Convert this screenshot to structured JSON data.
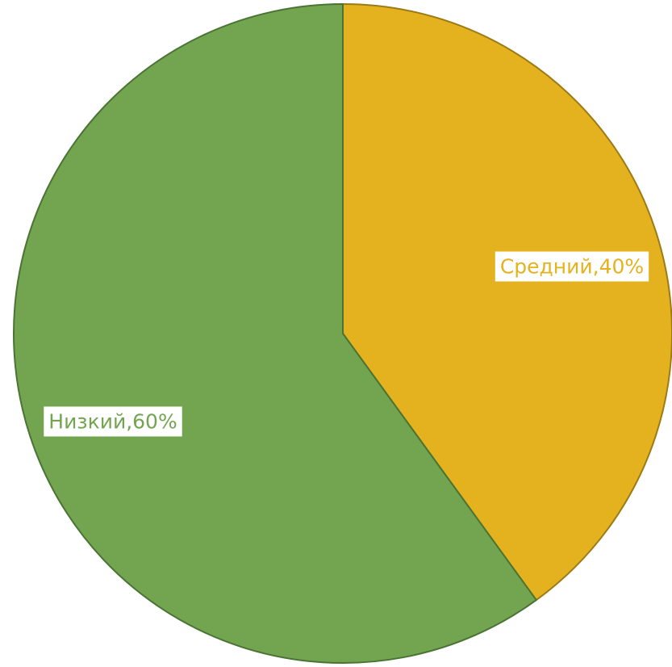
{
  "chart_data": {
    "type": "pie",
    "slices": [
      {
        "category": "Средний",
        "value": 40,
        "label": "Средний,40%",
        "color": "#E5B21F",
        "edge_color": "#9C7A14",
        "label_color": "#E5B21F"
      },
      {
        "category": "Низкий",
        "value": 60,
        "label": "Низкий,60%",
        "color": "#73A550",
        "edge_color": "#4A7334",
        "label_color": "#73A550"
      }
    ],
    "start_angle": "12 o'clock",
    "direction": "clockwise",
    "label_background": "#FFFFFF"
  }
}
